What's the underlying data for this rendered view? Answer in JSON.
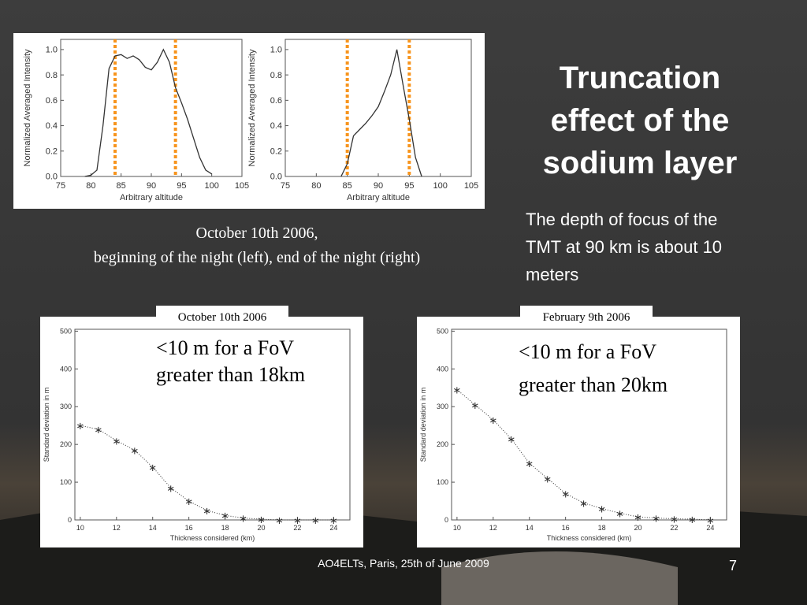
{
  "title": [
    "Truncation",
    "effect of the",
    "sodium layer"
  ],
  "body": [
    "The depth of focus of the",
    "TMT at 90 km is about 10",
    "meters"
  ],
  "caption": [
    "October 10th 2006,",
    "beginning of the night (left), end of the night (right)"
  ],
  "footer": "AO4ELTs, Paris, 25th of June 2009",
  "page_number": 7,
  "chart_data": [
    {
      "type": "line",
      "xlabel": "Arbitrary altitude",
      "ylabel": "Normalized Averaged Intensity",
      "x": [
        79,
        80,
        81,
        82,
        83,
        84,
        85,
        86,
        87,
        88,
        89,
        90,
        91,
        92,
        93,
        94,
        95,
        96,
        97,
        98,
        99,
        100
      ],
      "values": [
        0,
        0.01,
        0.05,
        0.4,
        0.85,
        0.95,
        0.96,
        0.93,
        0.95,
        0.92,
        0.86,
        0.84,
        0.9,
        1.0,
        0.9,
        0.7,
        0.58,
        0.45,
        0.3,
        0.15,
        0.05,
        0.02
      ],
      "color": "#333333",
      "xlim": [
        75,
        105
      ],
      "xticks": [
        75,
        80,
        85,
        90,
        95,
        100,
        105
      ],
      "ylim": [
        0,
        1.08
      ],
      "yticks": [
        {
          "value": 0,
          "label": "0.0"
        },
        {
          "value": 0.2,
          "label": "0.2"
        },
        {
          "value": 0.4,
          "label": "0.4"
        },
        {
          "value": 0.6,
          "label": "0.6"
        },
        {
          "value": 0.8,
          "label": "0.8"
        },
        {
          "value": 1,
          "label": "1.0"
        }
      ],
      "vlines": [
        84,
        94
      ],
      "vline_color": "#f7941d"
    },
    {
      "type": "line",
      "xlabel": "Arbitrary altitude",
      "ylabel": "Normalized Averaged Intensity",
      "x": [
        84,
        85,
        86,
        87,
        88,
        89,
        90,
        91,
        92,
        93,
        94,
        95,
        96,
        97
      ],
      "values": [
        0,
        0.1,
        0.32,
        0.37,
        0.42,
        0.48,
        0.55,
        0.67,
        0.8,
        1.0,
        0.72,
        0.45,
        0.15,
        0
      ],
      "color": "#333333",
      "xlim": [
        75,
        105
      ],
      "xticks": [
        75,
        80,
        85,
        90,
        95,
        100,
        105
      ],
      "ylim": [
        0,
        1.08
      ],
      "yticks": [
        {
          "value": 0,
          "label": "0.0"
        },
        {
          "value": 0.2,
          "label": "0.2"
        },
        {
          "value": 0.4,
          "label": "0.4"
        },
        {
          "value": 0.6,
          "label": "0.6"
        },
        {
          "value": 0.8,
          "label": "0.8"
        },
        {
          "value": 1,
          "label": "1.0"
        }
      ],
      "vlines": [
        85,
        95
      ],
      "vline_color": "#f7941d"
    },
    {
      "type": "line",
      "title": "October 10th 2006",
      "xlabel": "Thickness considered (km)",
      "ylabel": "Standard deviation in m",
      "annotation": [
        "<10 m for a FoV",
        "greater than 18km"
      ],
      "x": [
        10,
        11,
        12,
        13,
        14,
        15,
        16,
        17,
        18,
        19,
        20,
        21,
        22,
        23,
        24
      ],
      "values": [
        250,
        240,
        210,
        185,
        140,
        85,
        50,
        25,
        12,
        5,
        2,
        0,
        0,
        0,
        0
      ],
      "color": "#333333",
      "markers": true,
      "line_style": "dotted",
      "xlim": [
        9.7,
        24.9
      ],
      "xticks": [
        10,
        12,
        14,
        16,
        18,
        20,
        22,
        24
      ],
      "ylim": [
        0,
        505
      ],
      "yticks": [
        0,
        100,
        200,
        300,
        400,
        500
      ]
    },
    {
      "type": "line",
      "title": "February 9th 2006",
      "xlabel": "Thickness considered (km)",
      "ylabel": "Standard deviation in m",
      "annotation": [
        "<10 m for a FoV",
        "greater than 20km"
      ],
      "x": [
        10,
        11,
        12,
        13,
        14,
        15,
        16,
        17,
        18,
        19,
        20,
        21,
        22,
        23,
        24
      ],
      "values": [
        345,
        305,
        265,
        215,
        150,
        110,
        70,
        45,
        30,
        18,
        8,
        5,
        3,
        2,
        0
      ],
      "color": "#333333",
      "markers": true,
      "line_style": "dotted",
      "xlim": [
        9.7,
        24.9
      ],
      "xticks": [
        10,
        12,
        14,
        16,
        18,
        20,
        22,
        24
      ],
      "ylim": [
        0,
        505
      ],
      "yticks": [
        0,
        100,
        200,
        300,
        400,
        500
      ]
    }
  ]
}
